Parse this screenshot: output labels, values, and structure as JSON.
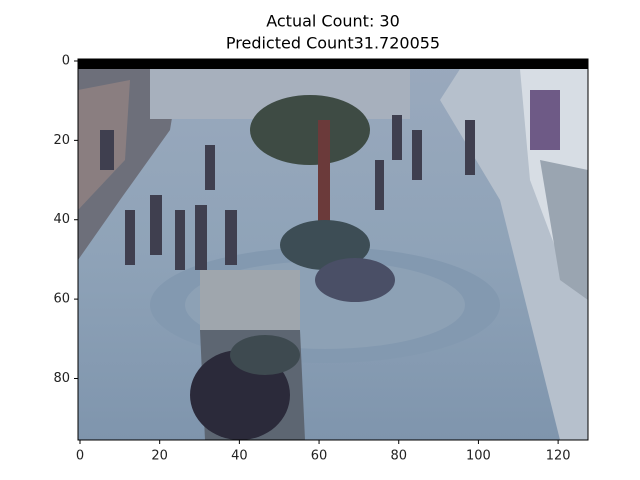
{
  "chart_data": {
    "type": "image",
    "title": "Actual Count: 30",
    "subtitle": "Predicted Count31.720055",
    "xlim": [
      -0.5,
      127.5
    ],
    "xticks": [
      0,
      20,
      40,
      60,
      80,
      100,
      120
    ],
    "ylim": [
      95.5,
      -0.5
    ],
    "yticks": [
      0,
      20,
      40,
      60,
      80
    ]
  }
}
